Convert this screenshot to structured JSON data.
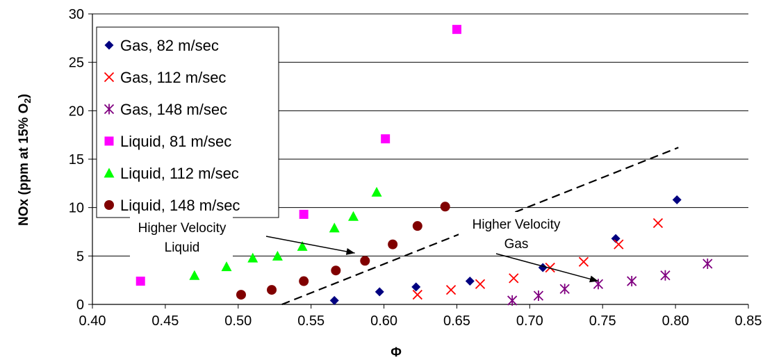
{
  "chart_data": {
    "type": "scatter",
    "title": "",
    "xlabel": "Φ",
    "ylabel": "NOx (ppm at 15% O",
    "ylabel_sub": "2",
    "ylabel_tail": ")",
    "xlim": [
      0.4,
      0.85
    ],
    "ylim": [
      0,
      30
    ],
    "x_ticks": [
      "0.40",
      "0.45",
      "0.50",
      "0.55",
      "0.60",
      "0.65",
      "0.70",
      "0.75",
      "0.80",
      "0.85"
    ],
    "y_ticks": [
      "0",
      "5",
      "10",
      "15",
      "20",
      "25",
      "30"
    ],
    "grid": "horizontal",
    "legend_position": "top-left",
    "series": [
      {
        "name": "Gas, 82 m/sec",
        "marker": "diamond",
        "color": "#000080",
        "x": [
          0.566,
          0.597,
          0.622,
          0.659,
          0.709,
          0.759,
          0.801
        ],
        "y": [
          0.4,
          1.3,
          1.8,
          2.4,
          3.8,
          6.8,
          10.8
        ]
      },
      {
        "name": "Gas, 112 m/sec",
        "marker": "x",
        "color": "#FF0000",
        "x": [
          0.623,
          0.646,
          0.666,
          0.689,
          0.714,
          0.737,
          0.761,
          0.788
        ],
        "y": [
          1.0,
          1.5,
          2.1,
          2.7,
          3.8,
          4.4,
          6.2,
          8.4
        ]
      },
      {
        "name": "Gas, 148 m/sec",
        "marker": "star",
        "color": "#800080",
        "x": [
          0.688,
          0.706,
          0.724,
          0.747,
          0.77,
          0.793,
          0.822
        ],
        "y": [
          0.4,
          0.9,
          1.6,
          2.1,
          2.4,
          3.0,
          4.2
        ]
      },
      {
        "name": "Liquid, 81 m/sec",
        "marker": "square",
        "color": "#FF00FF",
        "x": [
          0.433,
          0.545,
          0.601,
          0.65
        ],
        "y": [
          2.4,
          9.3,
          17.1,
          28.4
        ]
      },
      {
        "name": "Liquid, 112 m/sec",
        "marker": "triangle",
        "color": "#00FF00",
        "x": [
          0.47,
          0.492,
          0.51,
          0.527,
          0.544,
          0.566,
          0.579,
          0.595
        ],
        "y": [
          3.0,
          3.9,
          4.8,
          5.0,
          6.0,
          7.9,
          9.1,
          11.6
        ]
      },
      {
        "name": "Liquid, 148 m/sec",
        "marker": "circle",
        "color": "#800000",
        "x": [
          0.502,
          0.523,
          0.545,
          0.567,
          0.587,
          0.606,
          0.623,
          0.642
        ],
        "y": [
          1.0,
          1.5,
          2.4,
          3.5,
          4.5,
          6.2,
          8.1,
          10.1
        ]
      }
    ],
    "dashed_line": {
      "x": [
        0.53,
        0.802
      ],
      "y": [
        0.0,
        16.2
      ]
    },
    "annotations": [
      {
        "text": [
          "Higher Velocity",
          "Liquid"
        ],
        "arrow_to": [
          0.58,
          5.3
        ]
      },
      {
        "text": [
          "Higher Velocity",
          "Gas"
        ],
        "arrow_to": [
          0.747,
          2.4
        ]
      }
    ]
  }
}
